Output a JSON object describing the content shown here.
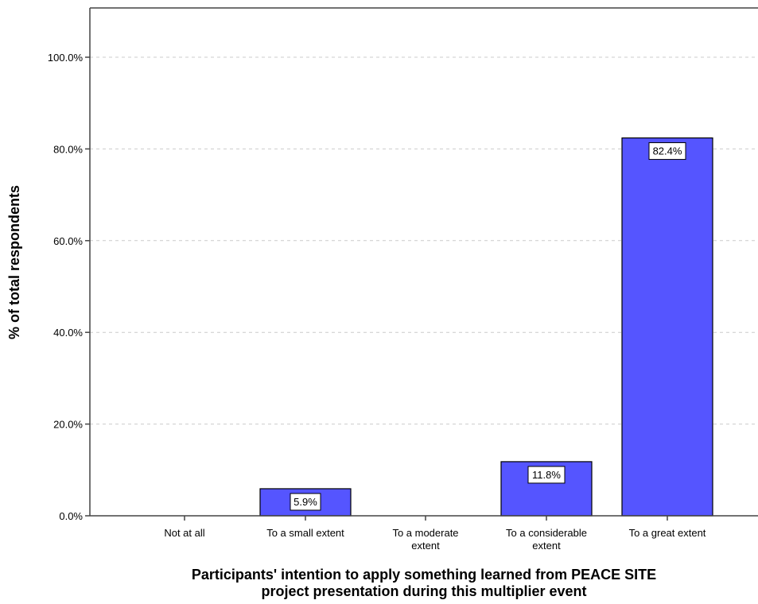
{
  "chart_data": {
    "type": "bar",
    "categories": [
      "Not at all",
      "To a small extent",
      "To a moderate extent",
      "To a considerable extent",
      "To a great extent"
    ],
    "category_label_lines": [
      [
        "Not at all"
      ],
      [
        "To a small extent"
      ],
      [
        "To a moderate",
        "extent"
      ],
      [
        "To a considerable",
        "extent"
      ],
      [
        "To a great extent"
      ]
    ],
    "values": [
      0,
      5.9,
      0,
      11.8,
      82.4
    ],
    "data_labels": [
      "",
      "5.9%",
      "",
      "11.8%",
      "82.4%"
    ],
    "ylim": [
      0,
      110
    ],
    "yticks": [
      0,
      20,
      40,
      60,
      80,
      100
    ],
    "ytick_labels": [
      "0.0%",
      "20.0%",
      "40.0%",
      "60.0%",
      "80.0%",
      "100.0%"
    ],
    "ylabel": "% of total respondents",
    "xlabel_lines": [
      "Participants' intention to apply something learned from PEACE SITE",
      "project presentation during this multiplier event"
    ],
    "grid": true,
    "bar_color": "#5555ff"
  }
}
